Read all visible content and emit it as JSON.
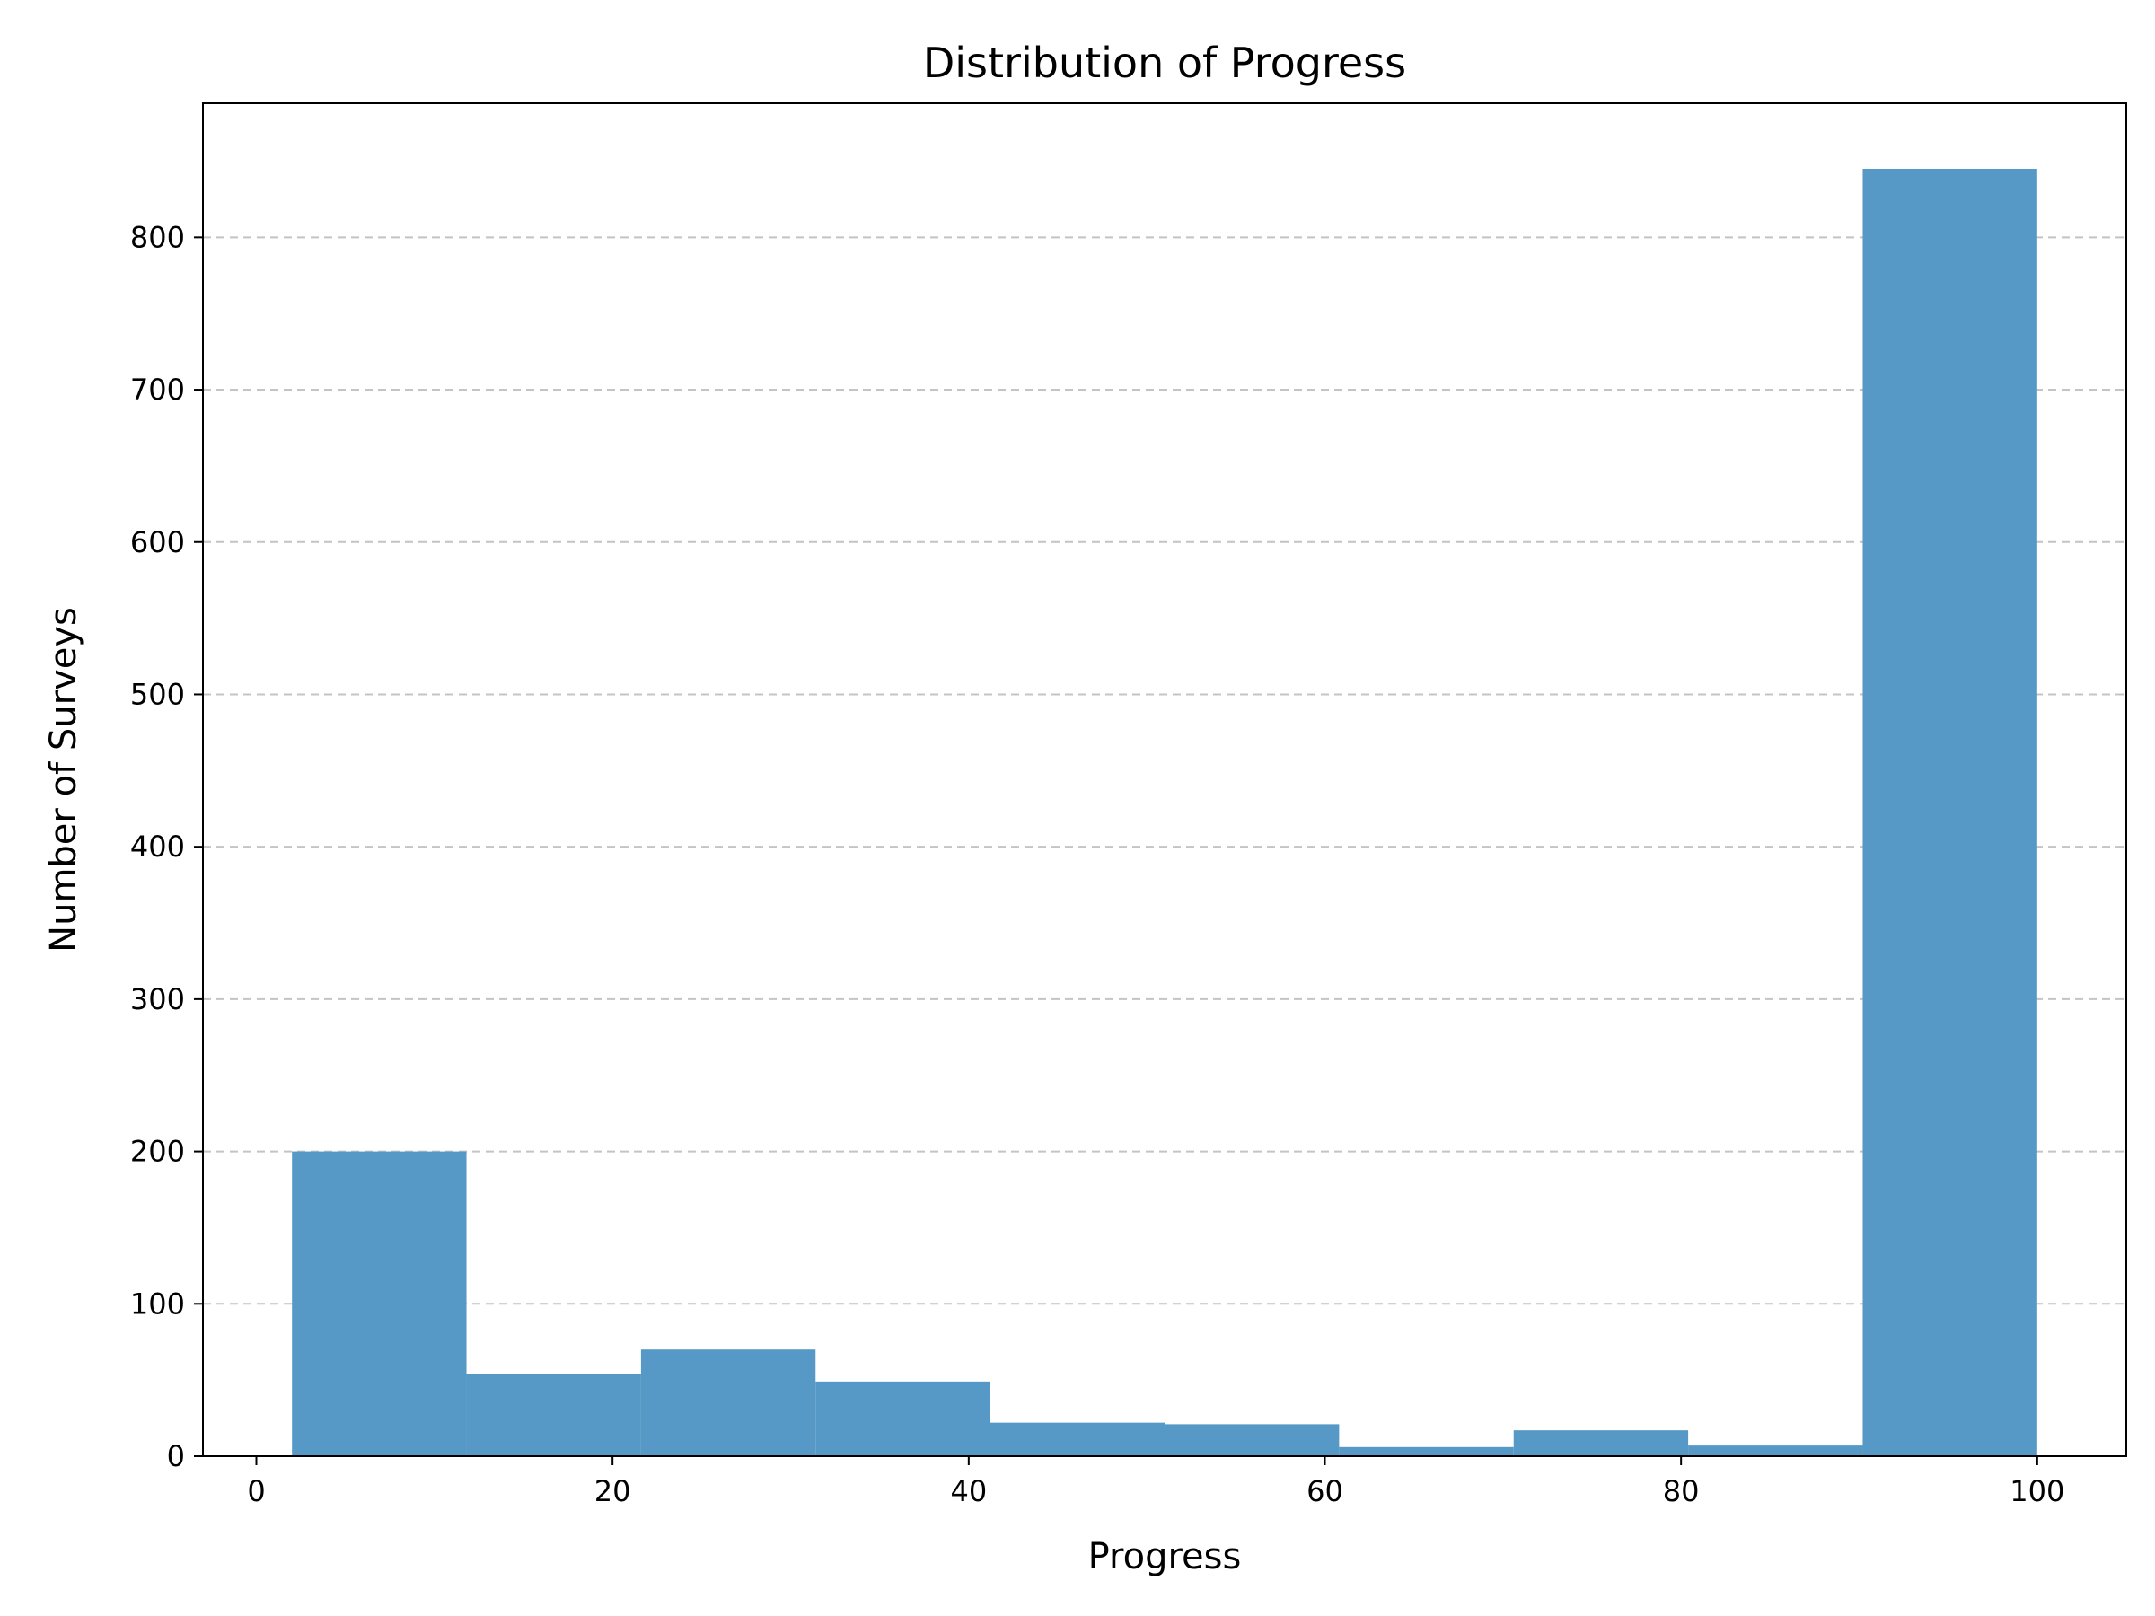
{
  "chart_data": {
    "type": "bar",
    "title": "Distribution of Progress",
    "xlabel": "Progress",
    "ylabel": "Number of Surveys",
    "xlim": [
      -3,
      105
    ],
    "ylim": [
      0,
      888
    ],
    "xticks": [
      0,
      20,
      40,
      60,
      80,
      100
    ],
    "yticks": [
      0,
      100,
      200,
      300,
      400,
      500,
      600,
      700,
      800
    ],
    "grid": {
      "y": true,
      "x": false,
      "style": "dashed"
    },
    "bar_color": "#5799c6",
    "bins": [
      {
        "x0": 2.0,
        "x1": 11.8,
        "value": 200
      },
      {
        "x0": 11.8,
        "x1": 21.6,
        "value": 54
      },
      {
        "x0": 21.6,
        "x1": 31.4,
        "value": 70
      },
      {
        "x0": 31.4,
        "x1": 41.2,
        "value": 49
      },
      {
        "x0": 41.2,
        "x1": 51.0,
        "value": 22
      },
      {
        "x0": 51.0,
        "x1": 60.8,
        "value": 21
      },
      {
        "x0": 60.8,
        "x1": 70.6,
        "value": 6
      },
      {
        "x0": 70.6,
        "x1": 80.4,
        "value": 17
      },
      {
        "x0": 80.4,
        "x1": 90.2,
        "value": 7
      },
      {
        "x0": 90.2,
        "x1": 100.0,
        "value": 845
      }
    ]
  }
}
